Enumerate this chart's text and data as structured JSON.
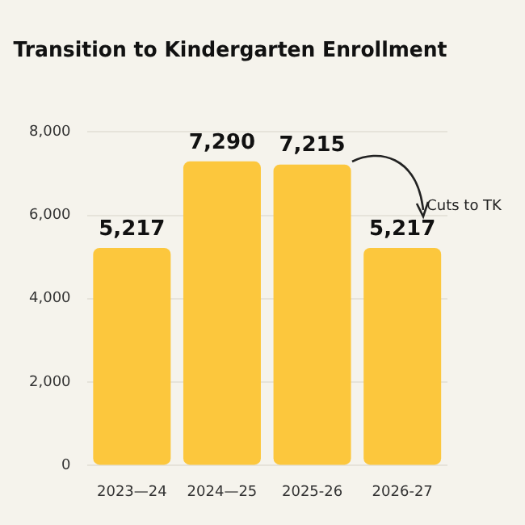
{
  "chart_data": {
    "type": "bar",
    "title": "Transition to Kindergarten Enrollment",
    "categories": [
      "2023—24",
      "2024—25",
      "2025-26",
      "2026-27"
    ],
    "values": [
      5217,
      7290,
      7215,
      5217
    ],
    "color": "#fcc73d",
    "ylim": [
      0,
      8000
    ],
    "yticks": [
      {
        "value": 0,
        "label": "0"
      },
      {
        "value": 2000,
        "label": "2,000"
      },
      {
        "value": 4000,
        "label": "4,000"
      },
      {
        "value": 6000,
        "label": "6,000"
      },
      {
        "value": 8000,
        "label": "8,000"
      }
    ],
    "value_labels": [
      "5,217",
      "7,290",
      "7,215",
      "5,217"
    ],
    "grid": "y",
    "legend": false,
    "annotations": [
      {
        "text": "Cuts to TK",
        "x": "2026-27",
        "y": 5217
      }
    ]
  }
}
